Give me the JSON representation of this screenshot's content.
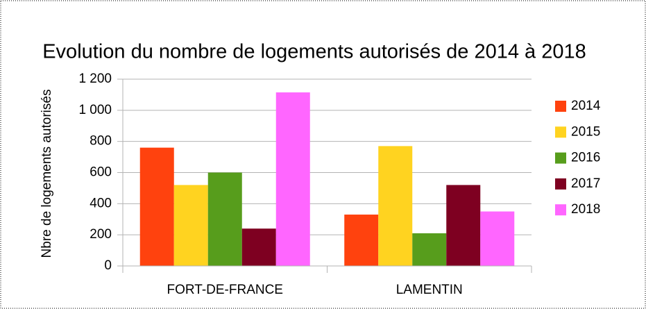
{
  "chart_data": {
    "type": "bar",
    "title": "Evolution du nombre de logements autorisés de 2014 à 2018",
    "y_label": "Nbre de logements autorisés",
    "categories": [
      "FORT-DE-FRANCE",
      "LAMENTIN"
    ],
    "series": [
      {
        "name": "2014",
        "color": "#ff420e",
        "values": [
          760,
          330
        ]
      },
      {
        "name": "2015",
        "color": "#ffd320",
        "values": [
          520,
          770
        ]
      },
      {
        "name": "2016",
        "color": "#579d1c",
        "values": [
          600,
          210
        ]
      },
      {
        "name": "2017",
        "color": "#7e0021",
        "values": [
          240,
          520
        ]
      },
      {
        "name": "2018",
        "color": "#ff66ff",
        "values": [
          1115,
          350
        ]
      }
    ],
    "ylim": [
      0,
      1200
    ],
    "yticks": [
      0,
      200,
      400,
      600,
      800,
      {
        "value": 1000,
        "label": "1 000"
      },
      {
        "value": 1200,
        "label": "1 200"
      }
    ],
    "grid": true,
    "legend": "right"
  }
}
